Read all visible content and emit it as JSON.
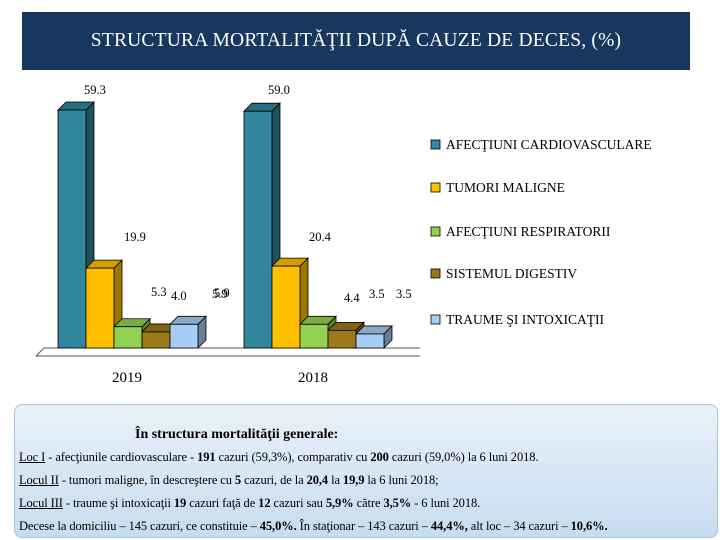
{
  "title": "STRUCTURA MORTALITĂŢII DUPĂ CAUZE DE DECES, (%)",
  "colors": {
    "title_bg": "#17375e",
    "series": [
      "#31859c",
      "#ffc000",
      "#92d050",
      "#9c7a1a",
      "#a7cdf2"
    ]
  },
  "chart_data": {
    "type": "bar",
    "title": "STRUCTURA MORTALITĂŢII DUPĂ CAUZE DE DECES, (%)",
    "categories": [
      "2019",
      "2018"
    ],
    "series": [
      {
        "name": "AFECŢIUNI CARDIOVASCULARE",
        "values": [
          59.3,
          59.0
        ],
        "value_labels": [
          "59.3",
          "59.0"
        ]
      },
      {
        "name": "TUMORI MALIGNE",
        "values": [
          19.9,
          20.4
        ],
        "value_labels": [
          "19.9",
          "20.4"
        ]
      },
      {
        "name": "AFECŢIUNI RESPIRATORII",
        "values": [
          5.3,
          5.9
        ],
        "value_labels": [
          "5.3",
          "5.9"
        ]
      },
      {
        "name": "SISTEMUL DIGESTIV",
        "values": [
          4.0,
          4.4
        ],
        "value_labels": [
          "4.0",
          "4.4"
        ]
      },
      {
        "name": "TRAUME ŞI INTOXICAŢII",
        "values": [
          5.9,
          3.5
        ],
        "value_labels": [
          "5.9",
          "3.5"
        ]
      }
    ],
    "extra_labels": [
      "3.5"
    ],
    "legend_position": "right",
    "grid": false,
    "style": "3d-columns"
  },
  "info": {
    "heading": "În structura mortalităţii generale:",
    "line1": {
      "prefix": "Loc I",
      "t1": " - afecţiunile cardiovasculare - ",
      "b1": "191",
      "t2": " cazuri (59,3%), comparativ cu ",
      "b2": "200",
      "t3": " cazuri (59,0%) la 6 luni 2018."
    },
    "line2": {
      "prefix": "Locul II",
      "t1": " - tumori maligne, în descreştere cu ",
      "b1": "5",
      "t2": " cazuri, de la ",
      "b2": "20,4",
      "t3": " la ",
      "b3": "19,9",
      "t4": " la 6 luni 2018;"
    },
    "line3": {
      "prefix": "Locul III",
      "t1": " - traume şi intoxicaţii ",
      "b1": "19",
      "t2": " cazuri faţă de ",
      "b2": "12",
      "t3": " cazuri sau ",
      "b3": "5,9%",
      "t4": " către ",
      "b4": "3,5%",
      "t5": " - 6 luni 2018."
    },
    "line4": {
      "t1": "Decese la domiciliu – 145 cazuri, ce constituie – ",
      "b1": "45,0%.",
      "t2": " În staţionar – 143 cazuri – ",
      "b2": "44,4%,",
      "t3": " alt loc – 34 cazuri – ",
      "b3": "10,6%."
    }
  }
}
